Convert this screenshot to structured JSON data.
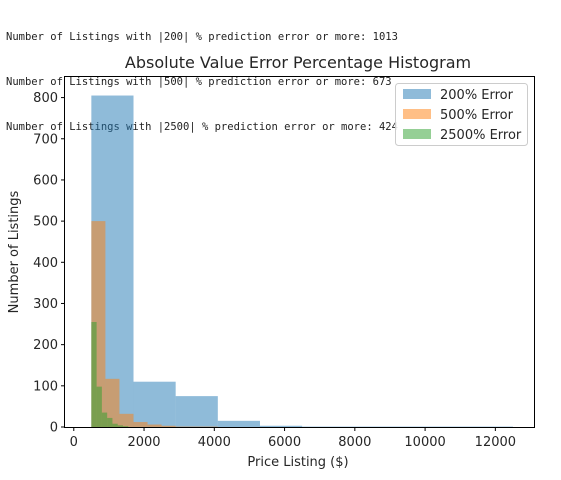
{
  "console_lines": [
    "Number of Listings with |200| % prediction error or more: 1013",
    "Number of Listings with |500| % prediction error or more: 673",
    "Number of Listings with |2500| % prediction error or more: 424"
  ],
  "chart_data": {
    "type": "bar",
    "title": "Absolute Value Error Percentage Histogram",
    "xlabel": "Price Listing ($)",
    "ylabel": "Number of Listings",
    "xlim": [
      -250,
      13100
    ],
    "ylim": [
      0,
      850
    ],
    "xticks": [
      0,
      2000,
      4000,
      6000,
      8000,
      10000,
      12000
    ],
    "yticks": [
      0,
      100,
      200,
      300,
      400,
      500,
      600,
      700,
      800
    ],
    "legend_position": "upper right",
    "series": [
      {
        "name": "200% Error",
        "color": "#1f77b4",
        "alpha": 0.5,
        "bins": [
          {
            "x0": 500,
            "x1": 1700,
            "value": 805
          },
          {
            "x0": 1700,
            "x1": 2900,
            "value": 110
          },
          {
            "x0": 2900,
            "x1": 4100,
            "value": 75
          },
          {
            "x0": 4100,
            "x1": 5300,
            "value": 15
          },
          {
            "x0": 5300,
            "x1": 6500,
            "value": 3
          },
          {
            "x0": 6500,
            "x1": 7700,
            "value": 1
          },
          {
            "x0": 7700,
            "x1": 8900,
            "value": 1
          },
          {
            "x0": 8900,
            "x1": 10100,
            "value": 1
          },
          {
            "x0": 10100,
            "x1": 11300,
            "value": 1
          },
          {
            "x0": 11300,
            "x1": 12500,
            "value": 1
          }
        ]
      },
      {
        "name": "500% Error",
        "color": "#ff7f0e",
        "alpha": 0.5,
        "bins": [
          {
            "x0": 500,
            "x1": 900,
            "value": 500
          },
          {
            "x0": 900,
            "x1": 1300,
            "value": 117
          },
          {
            "x0": 1300,
            "x1": 1700,
            "value": 32
          },
          {
            "x0": 1700,
            "x1": 2100,
            "value": 12
          },
          {
            "x0": 2100,
            "x1": 2500,
            "value": 6
          },
          {
            "x0": 2500,
            "x1": 2900,
            "value": 3
          },
          {
            "x0": 2900,
            "x1": 3300,
            "value": 1
          },
          {
            "x0": 3300,
            "x1": 3700,
            "value": 1
          },
          {
            "x0": 3700,
            "x1": 4100,
            "value": 1
          }
        ]
      },
      {
        "name": "2500% Error",
        "color": "#2ca02c",
        "alpha": 0.5,
        "bins": [
          {
            "x0": 500,
            "x1": 650,
            "value": 255
          },
          {
            "x0": 650,
            "x1": 800,
            "value": 98
          },
          {
            "x0": 800,
            "x1": 950,
            "value": 35
          },
          {
            "x0": 950,
            "x1": 1100,
            "value": 22
          },
          {
            "x0": 1100,
            "x1": 1250,
            "value": 8
          },
          {
            "x0": 1250,
            "x1": 1400,
            "value": 4
          },
          {
            "x0": 1400,
            "x1": 1550,
            "value": 2
          }
        ]
      }
    ]
  }
}
